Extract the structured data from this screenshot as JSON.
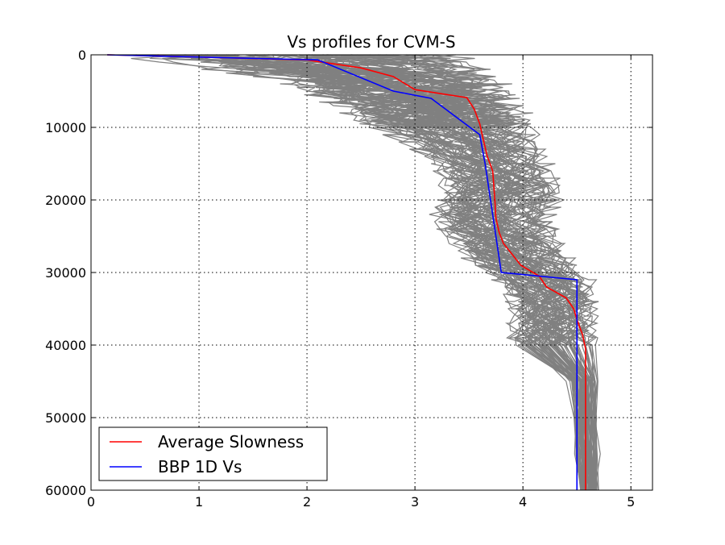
{
  "chart_data": {
    "type": "line",
    "title": "Vs profiles for CVM-S",
    "xlabel": "",
    "ylabel": "",
    "xlim": [
      0,
      5.2
    ],
    "ylim": [
      60000,
      0
    ],
    "y_inverted": true,
    "grid": true,
    "x_ticks": [
      0,
      1,
      2,
      3,
      4,
      5
    ],
    "y_ticks": [
      0,
      10000,
      20000,
      30000,
      40000,
      50000,
      60000
    ],
    "x_tick_labels": [
      "0",
      "1",
      "2",
      "3",
      "4",
      "5"
    ],
    "y_tick_labels": [
      "0",
      "10000",
      "20000",
      "30000",
      "40000",
      "50000",
      "60000"
    ],
    "legend_position": "lower-left",
    "colors": {
      "profiles": "#808080",
      "average": "#ff0000",
      "bbp": "#0000ff",
      "grid": "#000000",
      "axes": "#000000"
    },
    "series": [
      {
        "name": "Average Slowness",
        "color": "#ff0000",
        "points": [
          [
            0.15,
            0
          ],
          [
            1.0,
            300
          ],
          [
            2.0,
            700
          ],
          [
            2.5,
            1800
          ],
          [
            2.8,
            3000
          ],
          [
            3.0,
            4800
          ],
          [
            3.48,
            5900
          ],
          [
            3.55,
            7500
          ],
          [
            3.6,
            9500
          ],
          [
            3.63,
            11500
          ],
          [
            3.67,
            14000
          ],
          [
            3.72,
            16000
          ],
          [
            3.73,
            18000
          ],
          [
            3.74,
            20000
          ],
          [
            3.75,
            22500
          ],
          [
            3.78,
            24500
          ],
          [
            3.82,
            26000
          ],
          [
            3.9,
            27500
          ],
          [
            3.98,
            29000
          ],
          [
            4.15,
            30500
          ],
          [
            4.22,
            32000
          ],
          [
            4.4,
            33500
          ],
          [
            4.47,
            35000
          ],
          [
            4.5,
            36500
          ],
          [
            4.55,
            38500
          ],
          [
            4.58,
            40500
          ],
          [
            4.58,
            60000
          ]
        ]
      },
      {
        "name": "BBP 1D Vs",
        "color": "#0000ff",
        "points": [
          [
            0.15,
            0
          ],
          [
            2.1,
            700
          ],
          [
            2.8,
            5000
          ],
          [
            3.15,
            6000
          ],
          [
            3.6,
            11000
          ],
          [
            3.65,
            15000
          ],
          [
            3.8,
            30000
          ],
          [
            4.5,
            31000
          ],
          [
            4.5,
            60000
          ]
        ]
      }
    ],
    "profile_bands": {
      "name": "Vs profiles",
      "color": "#808080",
      "count": 80,
      "envelope": {
        "depth": [
          0,
          1000,
          2000,
          3000,
          4000,
          5000,
          6000,
          8000,
          10000,
          12000,
          15000,
          18000,
          20000,
          22000,
          25000,
          27000,
          29000,
          30000,
          31000,
          33000,
          35000,
          37000,
          39000,
          40000,
          45000,
          50000,
          55000,
          60000
        ],
        "vs_min": [
          0.1,
          0.5,
          1.0,
          1.5,
          1.75,
          1.9,
          2.05,
          2.3,
          2.55,
          2.85,
          3.15,
          3.2,
          3.15,
          3.1,
          3.25,
          3.35,
          3.5,
          3.6,
          3.7,
          3.82,
          3.85,
          3.85,
          3.85,
          3.85,
          4.4,
          4.45,
          4.47,
          4.5
        ],
        "vs_max": [
          3.7,
          3.75,
          3.8,
          3.85,
          3.9,
          3.95,
          4.05,
          4.1,
          4.15,
          4.2,
          4.3,
          4.4,
          4.4,
          4.35,
          4.35,
          4.42,
          4.55,
          4.6,
          4.68,
          4.7,
          4.7,
          4.72,
          4.72,
          4.72,
          4.72,
          4.72,
          4.72,
          4.72
        ]
      }
    }
  }
}
